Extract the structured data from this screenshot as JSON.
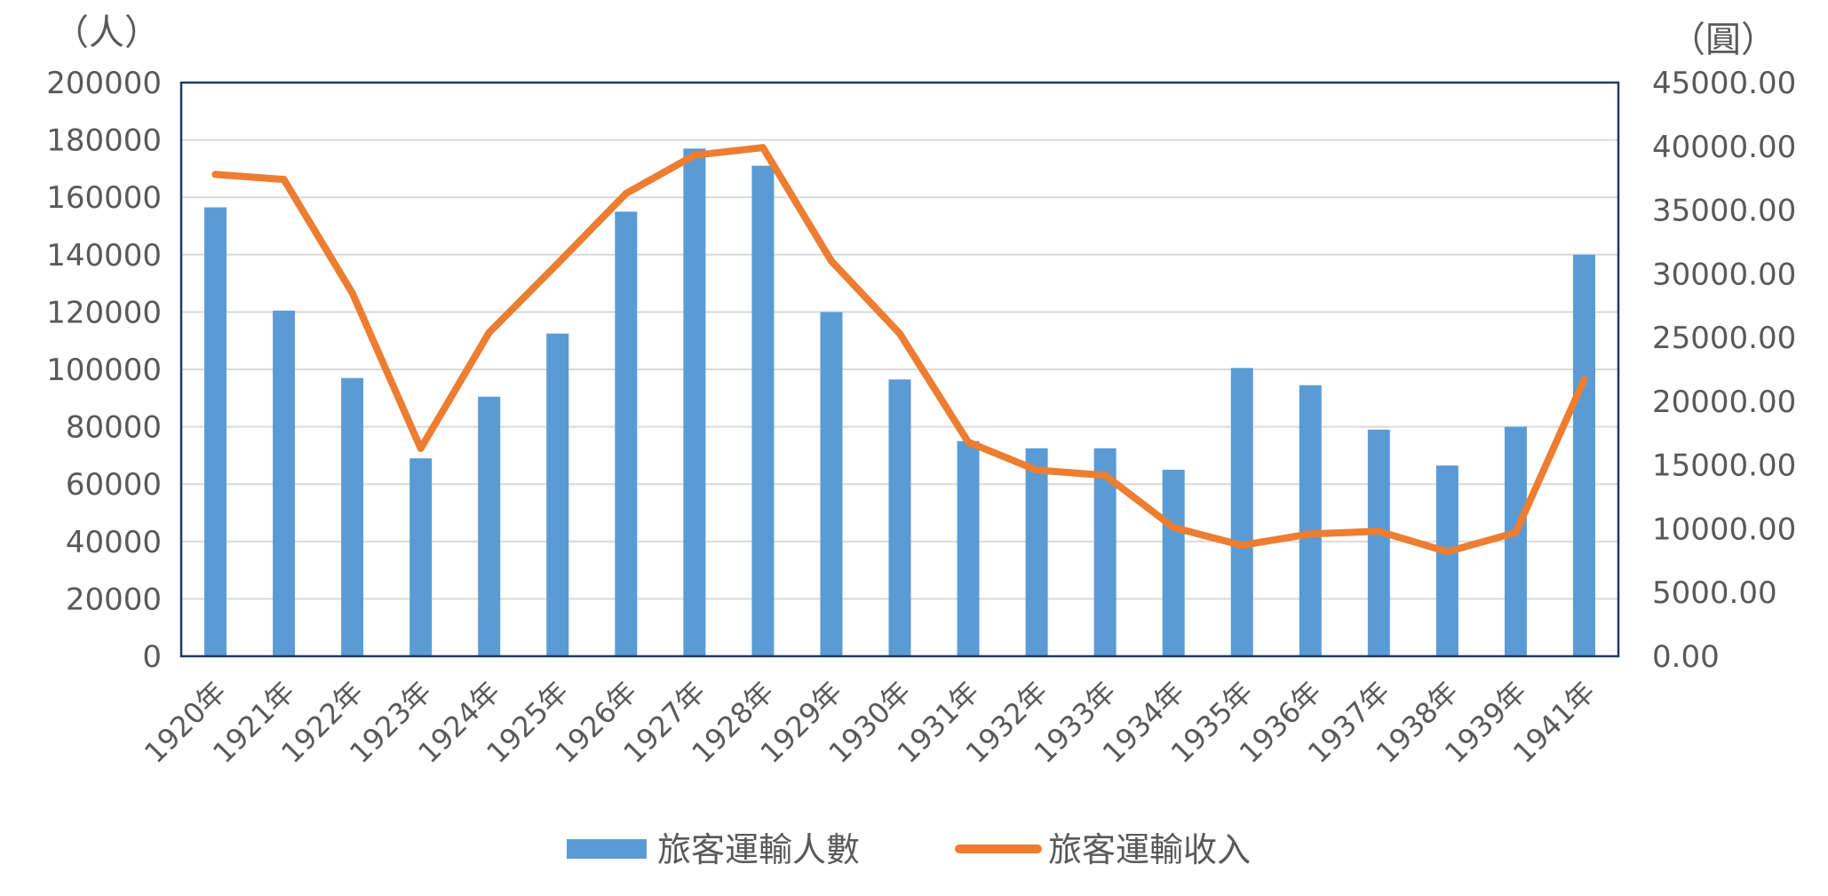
{
  "chart_data": {
    "type": "bar",
    "categories": [
      "1920年",
      "1921年",
      "1922年",
      "1923年",
      "1924年",
      "1925年",
      "1926年",
      "1927年",
      "1928年",
      "1929年",
      "1930年",
      "1931年",
      "1932年",
      "1933年",
      "1934年",
      "1935年",
      "1936年",
      "1937年",
      "1938年",
      "1939年",
      "1941年"
    ],
    "left_unit": "（人）",
    "right_unit": "（圓）",
    "left_axis": {
      "min": 0,
      "max": 200000,
      "step": 20000,
      "ticks": [
        "0",
        "20000",
        "40000",
        "60000",
        "80000",
        "100000",
        "120000",
        "140000",
        "160000",
        "180000",
        "200000"
      ]
    },
    "right_axis": {
      "min": 0,
      "max": 45000,
      "step": 5000,
      "ticks": [
        "0.00",
        "5000.00",
        "10000.00",
        "15000.00",
        "20000.00",
        "25000.00",
        "30000.00",
        "35000.00",
        "40000.00",
        "45000.00"
      ]
    },
    "grid": true,
    "legend_position": "bottom",
    "series": [
      {
        "name": "旅客運輸人數",
        "type": "bar",
        "axis": "left",
        "color": "#5B9BD5",
        "values": [
          156500,
          120500,
          97000,
          69000,
          90500,
          112500,
          155000,
          177000,
          171000,
          120000,
          96500,
          75000,
          72500,
          72500,
          65000,
          100500,
          94500,
          79000,
          66500,
          80000,
          140000
        ]
      },
      {
        "name": "旅客運輸收入",
        "type": "line",
        "axis": "right",
        "color": "#ED7D31",
        "values": [
          37800,
          37400,
          28500,
          16300,
          25400,
          30800,
          36300,
          39300,
          39900,
          31000,
          25300,
          16800,
          14600,
          14200,
          10100,
          8700,
          9600,
          9800,
          8200,
          9700,
          21700
        ]
      }
    ]
  }
}
